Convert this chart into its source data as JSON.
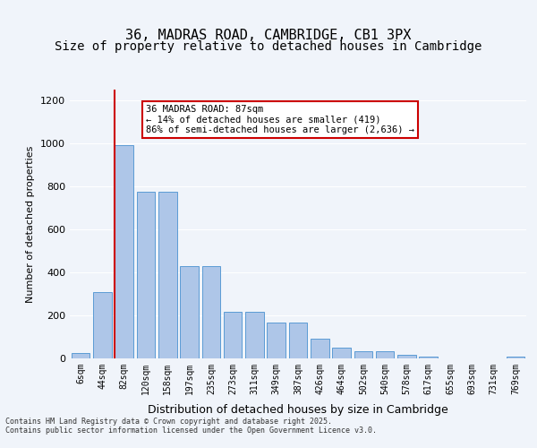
{
  "title1": "36, MADRAS ROAD, CAMBRIDGE, CB1 3PX",
  "title2": "Size of property relative to detached houses in Cambridge",
  "xlabel": "Distribution of detached houses by size in Cambridge",
  "ylabel": "Number of detached properties",
  "categories": [
    "6sqm",
    "44sqm",
    "82sqm",
    "120sqm",
    "158sqm",
    "197sqm",
    "235sqm",
    "273sqm",
    "311sqm",
    "349sqm",
    "387sqm",
    "426sqm",
    "464sqm",
    "502sqm",
    "540sqm",
    "578sqm",
    "617sqm",
    "655sqm",
    "693sqm",
    "731sqm",
    "769sqm"
  ],
  "values": [
    25,
    310,
    990,
    775,
    775,
    430,
    430,
    215,
    215,
    168,
    168,
    90,
    50,
    32,
    32,
    18,
    10,
    0,
    0,
    0,
    10
  ],
  "bar_color": "#aec6e8",
  "bar_edge_color": "#5b9bd5",
  "vline_x": 2,
  "vline_color": "#cc0000",
  "annotation_text": "36 MADRAS ROAD: 87sqm\n← 14% of detached houses are smaller (419)\n86% of semi-detached houses are larger (2,636) →",
  "annotation_box_color": "#cc0000",
  "ylim": [
    0,
    1250
  ],
  "yticks": [
    0,
    200,
    400,
    600,
    800,
    1000,
    1200
  ],
  "background_color": "#f0f4fa",
  "footer_text": "Contains HM Land Registry data © Crown copyright and database right 2025.\nContains public sector information licensed under the Open Government Licence v3.0.",
  "title_fontsize": 11,
  "subtitle_fontsize": 10
}
